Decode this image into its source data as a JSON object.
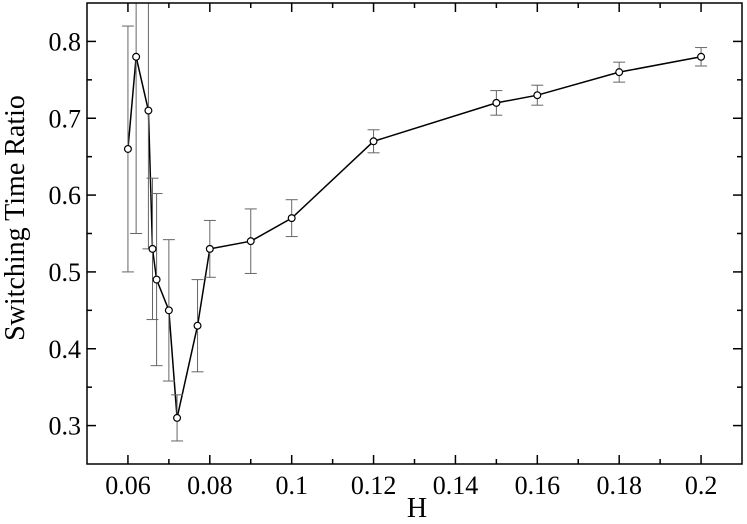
{
  "chart_data": {
    "type": "line",
    "title": "",
    "xlabel": "H",
    "ylabel": "Switching Time Ratio",
    "xlim": [
      0.05,
      0.21
    ],
    "ylim": [
      0.25,
      0.85
    ],
    "xticks": [
      0.06,
      0.08,
      0.1,
      0.12,
      0.14,
      0.16,
      0.18,
      0.2
    ],
    "xtick_labels": [
      "0.06",
      "0.08",
      "0.1",
      "0.12",
      "0.14",
      "0.16",
      "0.18",
      "0.2"
    ],
    "yticks": [
      0.3,
      0.4,
      0.5,
      0.6,
      0.7,
      0.8
    ],
    "ytick_labels": [
      "0.3",
      "0.4",
      "0.5",
      "0.6",
      "0.7",
      "0.8"
    ],
    "grid": false,
    "legend": "none",
    "series": [
      {
        "marker": "open-circle",
        "color": "#000000",
        "errorbar_color": "#666666",
        "x": [
          0.06,
          0.062,
          0.065,
          0.066,
          0.067,
          0.07,
          0.072,
          0.077,
          0.08,
          0.09,
          0.1,
          0.12,
          0.15,
          0.16,
          0.18,
          0.2
        ],
        "y": [
          0.66,
          0.78,
          0.71,
          0.53,
          0.49,
          0.45,
          0.31,
          0.43,
          0.53,
          0.54,
          0.57,
          0.67,
          0.72,
          0.73,
          0.76,
          0.78
        ],
        "yerr": [
          0.16,
          0.23,
          0.18,
          0.092,
          0.112,
          0.092,
          0.03,
          0.06,
          0.037,
          0.042,
          0.024,
          0.015,
          0.016,
          0.013,
          0.013,
          0.012
        ]
      }
    ]
  }
}
